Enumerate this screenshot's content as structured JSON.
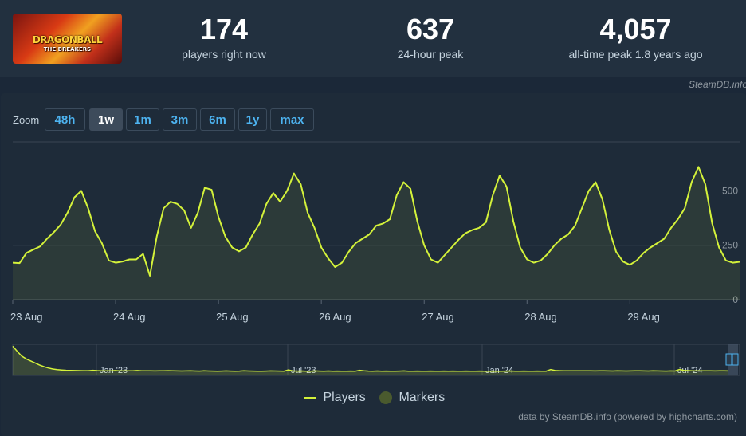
{
  "header": {
    "logo_lines": [
      "DRAGONBALL",
      "THE BREAKERS"
    ],
    "stats": [
      {
        "value": "174",
        "label": "players right now"
      },
      {
        "value": "637",
        "label": "24-hour peak"
      },
      {
        "value": "4,057",
        "label": "all-time peak 1.8 years ago"
      }
    ],
    "credit": "SteamDB.info"
  },
  "zoom": {
    "label": "Zoom",
    "buttons": [
      "48h",
      "1w",
      "1m",
      "3m",
      "6m",
      "1y",
      "max"
    ],
    "active": "1w"
  },
  "colors": {
    "line": "#d4f23a",
    "marker": "#4a5a2e",
    "background": "#1e2b39",
    "grid": "#3a4654"
  },
  "chart_data": {
    "type": "line",
    "series": [
      {
        "name": "Players",
        "points": [
          [
            0,
            170
          ],
          [
            1,
            168
          ],
          [
            2,
            215
          ],
          [
            3,
            230
          ],
          [
            4,
            245
          ],
          [
            5,
            280
          ],
          [
            6,
            310
          ],
          [
            7,
            345
          ],
          [
            8,
            400
          ],
          [
            9,
            470
          ],
          [
            10,
            500
          ],
          [
            11,
            420
          ],
          [
            12,
            315
          ],
          [
            13,
            260
          ],
          [
            14,
            180
          ],
          [
            15,
            170
          ],
          [
            16,
            175
          ],
          [
            17,
            185
          ],
          [
            18,
            185
          ],
          [
            19,
            210
          ],
          [
            20,
            110
          ],
          [
            21,
            290
          ],
          [
            22,
            420
          ],
          [
            23,
            450
          ],
          [
            24,
            440
          ],
          [
            25,
            410
          ],
          [
            26,
            330
          ],
          [
            27,
            400
          ],
          [
            28,
            515
          ],
          [
            29,
            505
          ],
          [
            30,
            380
          ],
          [
            31,
            290
          ],
          [
            32,
            240
          ],
          [
            33,
            222
          ],
          [
            34,
            240
          ],
          [
            35,
            300
          ],
          [
            36,
            350
          ],
          [
            37,
            440
          ],
          [
            38,
            490
          ],
          [
            39,
            450
          ],
          [
            40,
            500
          ],
          [
            41,
            580
          ],
          [
            42,
            530
          ],
          [
            43,
            400
          ],
          [
            44,
            330
          ],
          [
            45,
            240
          ],
          [
            46,
            190
          ],
          [
            47,
            150
          ],
          [
            48,
            170
          ],
          [
            49,
            220
          ],
          [
            50,
            260
          ],
          [
            51,
            280
          ],
          [
            52,
            300
          ],
          [
            53,
            340
          ],
          [
            54,
            350
          ],
          [
            55,
            370
          ],
          [
            56,
            480
          ],
          [
            57,
            540
          ],
          [
            58,
            510
          ],
          [
            59,
            360
          ],
          [
            60,
            250
          ],
          [
            61,
            185
          ],
          [
            62,
            170
          ],
          [
            63,
            205
          ],
          [
            64,
            240
          ],
          [
            65,
            275
          ],
          [
            66,
            305
          ],
          [
            67,
            320
          ],
          [
            68,
            330
          ],
          [
            69,
            355
          ],
          [
            70,
            480
          ],
          [
            71,
            570
          ],
          [
            72,
            520
          ],
          [
            73,
            360
          ],
          [
            74,
            240
          ],
          [
            75,
            185
          ],
          [
            76,
            170
          ],
          [
            77,
            180
          ],
          [
            78,
            210
          ],
          [
            79,
            250
          ],
          [
            80,
            280
          ],
          [
            81,
            300
          ],
          [
            82,
            340
          ],
          [
            83,
            420
          ],
          [
            84,
            500
          ],
          [
            85,
            540
          ],
          [
            86,
            460
          ],
          [
            87,
            320
          ],
          [
            88,
            220
          ],
          [
            89,
            175
          ],
          [
            90,
            160
          ],
          [
            91,
            180
          ],
          [
            92,
            215
          ],
          [
            93,
            240
          ],
          [
            94,
            260
          ],
          [
            95,
            280
          ],
          [
            96,
            330
          ],
          [
            97,
            370
          ],
          [
            98,
            420
          ],
          [
            99,
            540
          ],
          [
            100,
            610
          ],
          [
            101,
            530
          ],
          [
            102,
            350
          ],
          [
            103,
            240
          ],
          [
            104,
            180
          ],
          [
            105,
            170
          ],
          [
            106,
            174
          ]
        ]
      }
    ],
    "x_tick_labels": [
      "23 Aug",
      "24 Aug",
      "25 Aug",
      "26 Aug",
      "27 Aug",
      "28 Aug",
      "29 Aug"
    ],
    "x_tick_index": [
      0,
      15,
      30,
      45,
      60,
      75,
      90
    ],
    "x_range": [
      0,
      106
    ],
    "y_ticks": [
      0,
      250,
      500
    ],
    "ylim": [
      0,
      725
    ],
    "grid": true,
    "navigator": {
      "labels": [
        "Jan '23",
        "Jul '23",
        "Jan '24",
        "Jul '24"
      ],
      "values": [
        4057,
        3300,
        2600,
        2200,
        1900,
        1600,
        1300,
        1050,
        850,
        700,
        620,
        560,
        520,
        500,
        480,
        470,
        460,
        455,
        520,
        470,
        450,
        445,
        440,
        480,
        450,
        440,
        430,
        440,
        480,
        450,
        440,
        430,
        420,
        430,
        440,
        460,
        430,
        420,
        410,
        420,
        430,
        410,
        400,
        430,
        410,
        400,
        390,
        400,
        420,
        400,
        390,
        400,
        430,
        410,
        400,
        390,
        380,
        400,
        420,
        410,
        400,
        390,
        560,
        420,
        400,
        410,
        390,
        380,
        420,
        400,
        390,
        410,
        380,
        400,
        390,
        380,
        400,
        380,
        520,
        440,
        400,
        390,
        410,
        380,
        400,
        390,
        380,
        400,
        420,
        390,
        380,
        400,
        390,
        380,
        400,
        390,
        380,
        400,
        390,
        400,
        380,
        390,
        400,
        380,
        390,
        400,
        380,
        390,
        400,
        380,
        390,
        400,
        410,
        380,
        390,
        400,
        380,
        390,
        400,
        380,
        390,
        620,
        480,
        460,
        450,
        440,
        430,
        450,
        440,
        430,
        440,
        420,
        430,
        440,
        420,
        410,
        430,
        420,
        410,
        420,
        440,
        430,
        420,
        410,
        430,
        420,
        410,
        400,
        420,
        410,
        640,
        500,
        470,
        450,
        440,
        450,
        440,
        430,
        420,
        430,
        440,
        420
      ]
    },
    "legend": [
      "Players",
      "Markers"
    ]
  },
  "footer": "data by SteamDB.info (powered by highcharts.com)"
}
